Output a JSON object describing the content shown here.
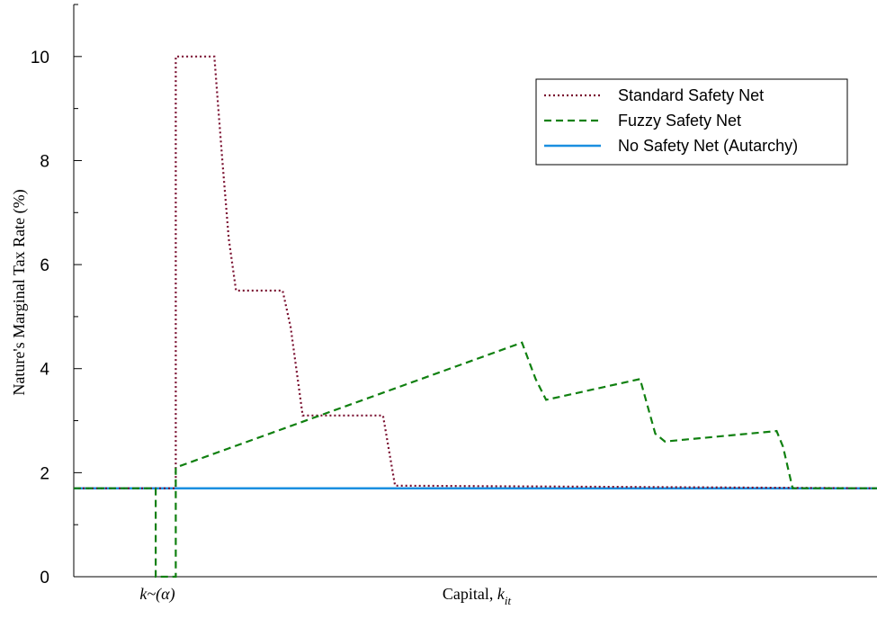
{
  "chart_data": {
    "type": "line",
    "ylabel": "Nature's Marginal Tax Rate (%)",
    "xlabel": {
      "main": "Capital, ",
      "var": "k",
      "sub": "it"
    },
    "x_marker": "k~(α)",
    "ylim": [
      0,
      11
    ],
    "xlim": [
      0,
      100
    ],
    "yticks": [
      0,
      2,
      4,
      6,
      8,
      10
    ],
    "grid": false,
    "legend_position": "top-right",
    "series": [
      {
        "name": "Standard Safety Net",
        "style": "dotted",
        "color": "#7a1030",
        "points": [
          [
            0,
            1.7
          ],
          [
            12.7,
            1.7
          ],
          [
            12.7,
            10
          ],
          [
            17.5,
            10
          ],
          [
            18,
            9
          ],
          [
            18.5,
            8
          ],
          [
            19.3,
            6.5
          ],
          [
            20.2,
            5.5
          ],
          [
            26,
            5.5
          ],
          [
            27,
            4.8
          ],
          [
            28.5,
            3.1
          ],
          [
            38.5,
            3.1
          ],
          [
            40,
            1.75
          ],
          [
            100,
            1.7
          ]
        ]
      },
      {
        "name": "Fuzzy Safety Net",
        "style": "dashed",
        "color": "#108010",
        "points": [
          [
            0,
            1.7
          ],
          [
            10.2,
            1.7
          ],
          [
            10.2,
            0
          ],
          [
            12.7,
            0
          ],
          [
            12.7,
            2.1
          ],
          [
            55.8,
            4.5
          ],
          [
            57.5,
            3.8
          ],
          [
            58.8,
            3.4
          ],
          [
            70.5,
            3.8
          ],
          [
            72.4,
            2.75
          ],
          [
            73.6,
            2.6
          ],
          [
            87.5,
            2.8
          ],
          [
            88.3,
            2.5
          ],
          [
            89.5,
            1.7
          ],
          [
            100,
            1.7
          ]
        ]
      },
      {
        "name": "No Safety Net (Autarchy)",
        "style": "solid",
        "color": "#1a8fe0",
        "points": [
          [
            0,
            1.7
          ],
          [
            100,
            1.7
          ]
        ]
      }
    ],
    "colors": {
      "axis": "#000000"
    }
  }
}
